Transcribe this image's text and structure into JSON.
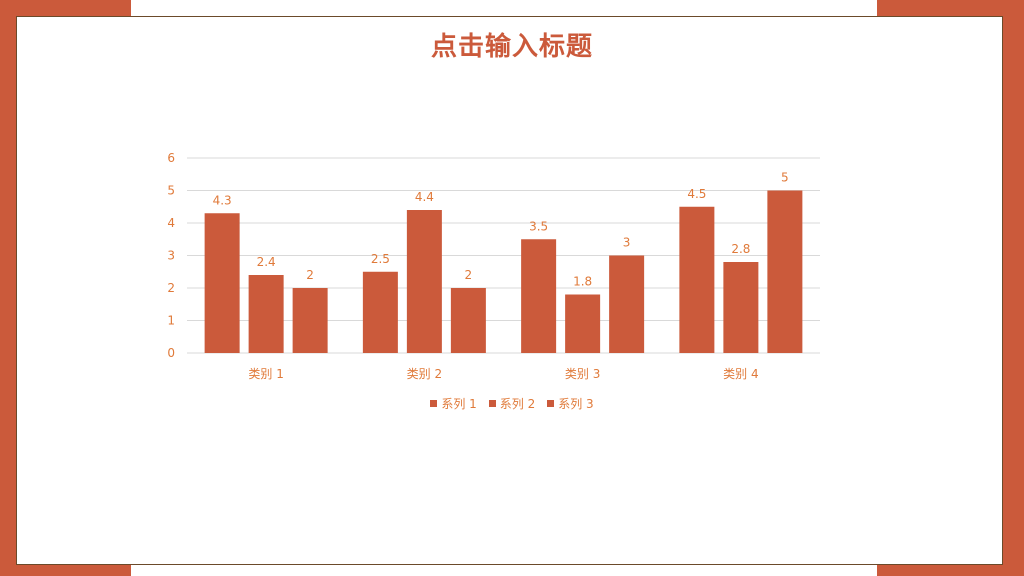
{
  "colors": {
    "accent": "#cb5a3b",
    "text": "#e07a3a",
    "grid": "#d9d9d9",
    "border": "#6b4a2a"
  },
  "slide": {
    "title": "点击输入标题"
  },
  "chart_data": {
    "type": "bar",
    "categories": [
      "类别 1",
      "类别 2",
      "类别 3",
      "类别 4"
    ],
    "series": [
      {
        "name": "系列 1",
        "values": [
          4.3,
          2.5,
          3.5,
          4.5
        ]
      },
      {
        "name": "系列 2",
        "values": [
          2.4,
          4.4,
          1.8,
          2.8
        ]
      },
      {
        "name": "系列 3",
        "values": [
          2,
          2,
          3,
          5
        ]
      }
    ],
    "ylim": [
      0,
      6
    ],
    "yticks": [
      "0",
      "1",
      "2",
      "3",
      "4",
      "5",
      "6"
    ],
    "grid": true,
    "legend": "bottom",
    "data_labels": true
  }
}
